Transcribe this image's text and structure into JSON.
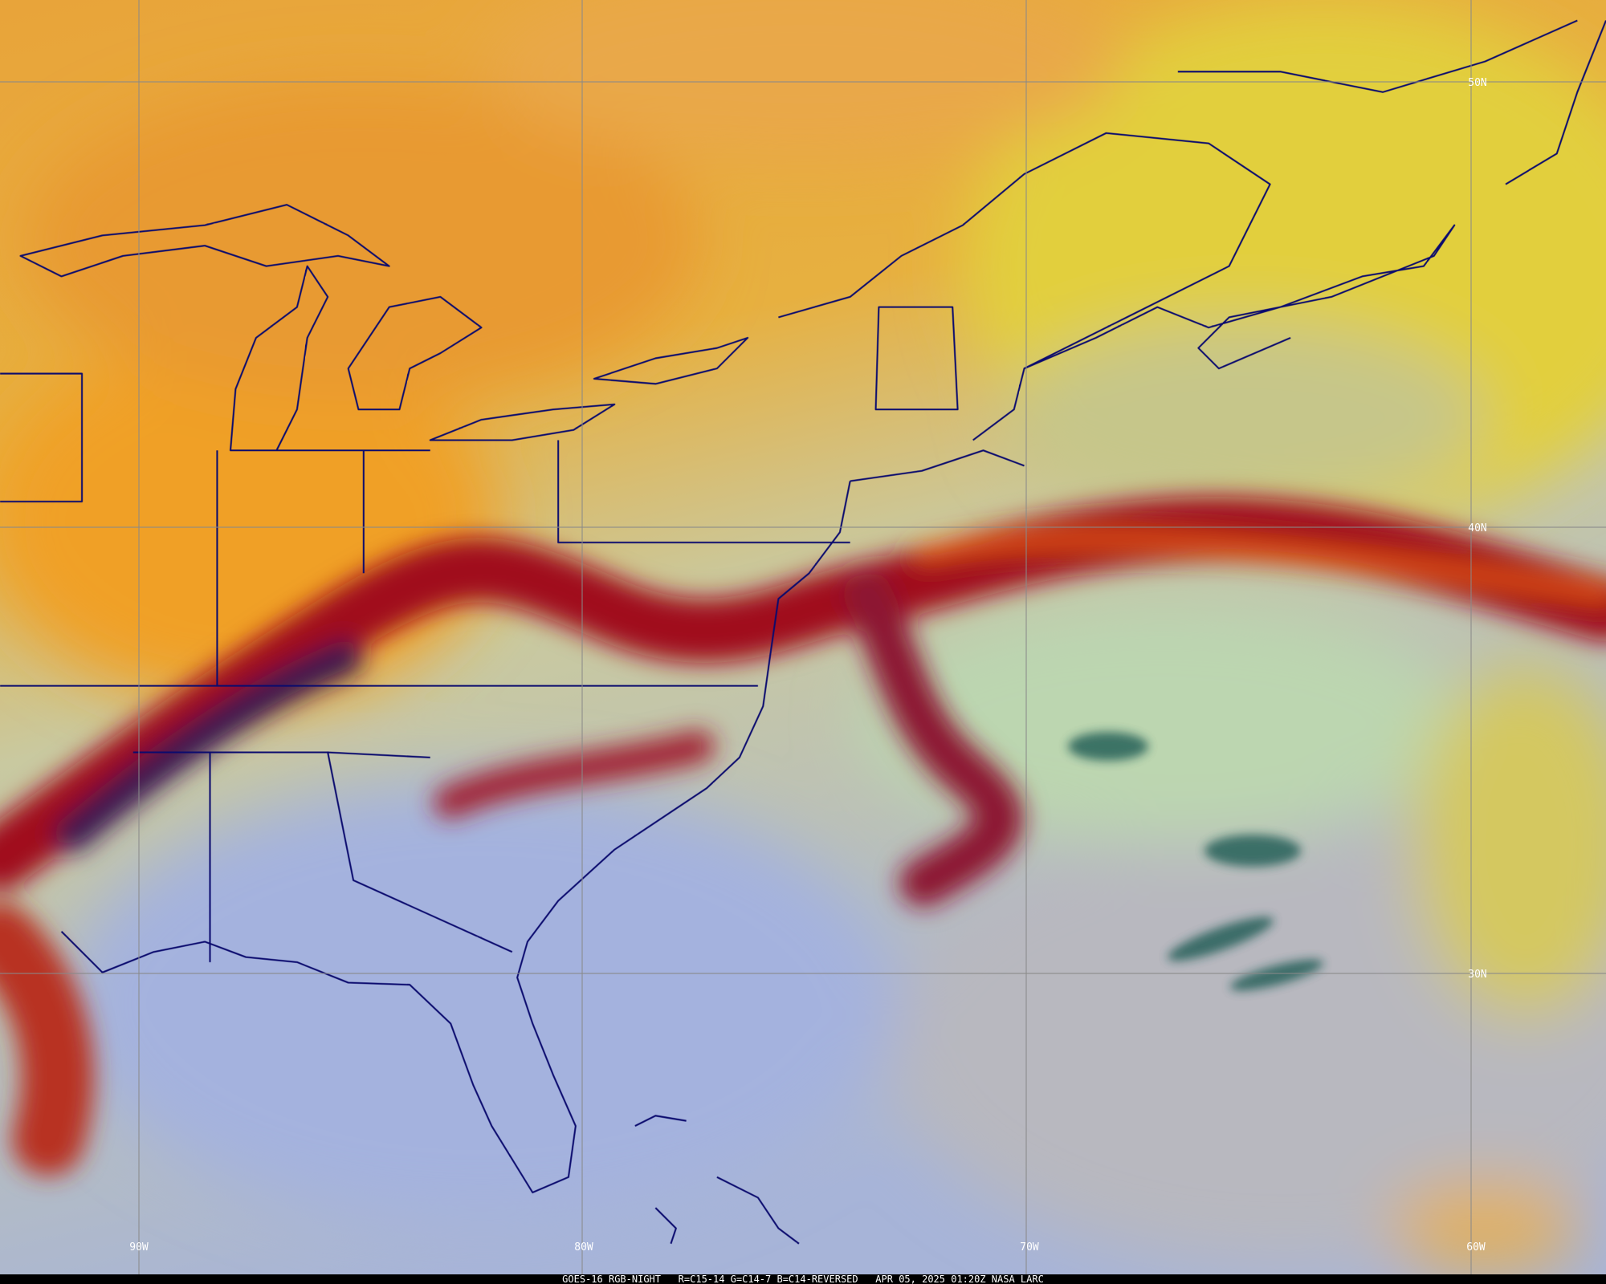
{
  "map": {
    "longitude_labels": [
      "90W",
      "80W",
      "70W",
      "60W"
    ],
    "latitude_labels": [
      "50N",
      "40N",
      "30N"
    ],
    "caption": "GOES-16 RGB-NIGHT   R=C15-14 G=C14-7 B=C14-REVERSED   APR 05, 2025 01:20Z NASA LARC"
  }
}
